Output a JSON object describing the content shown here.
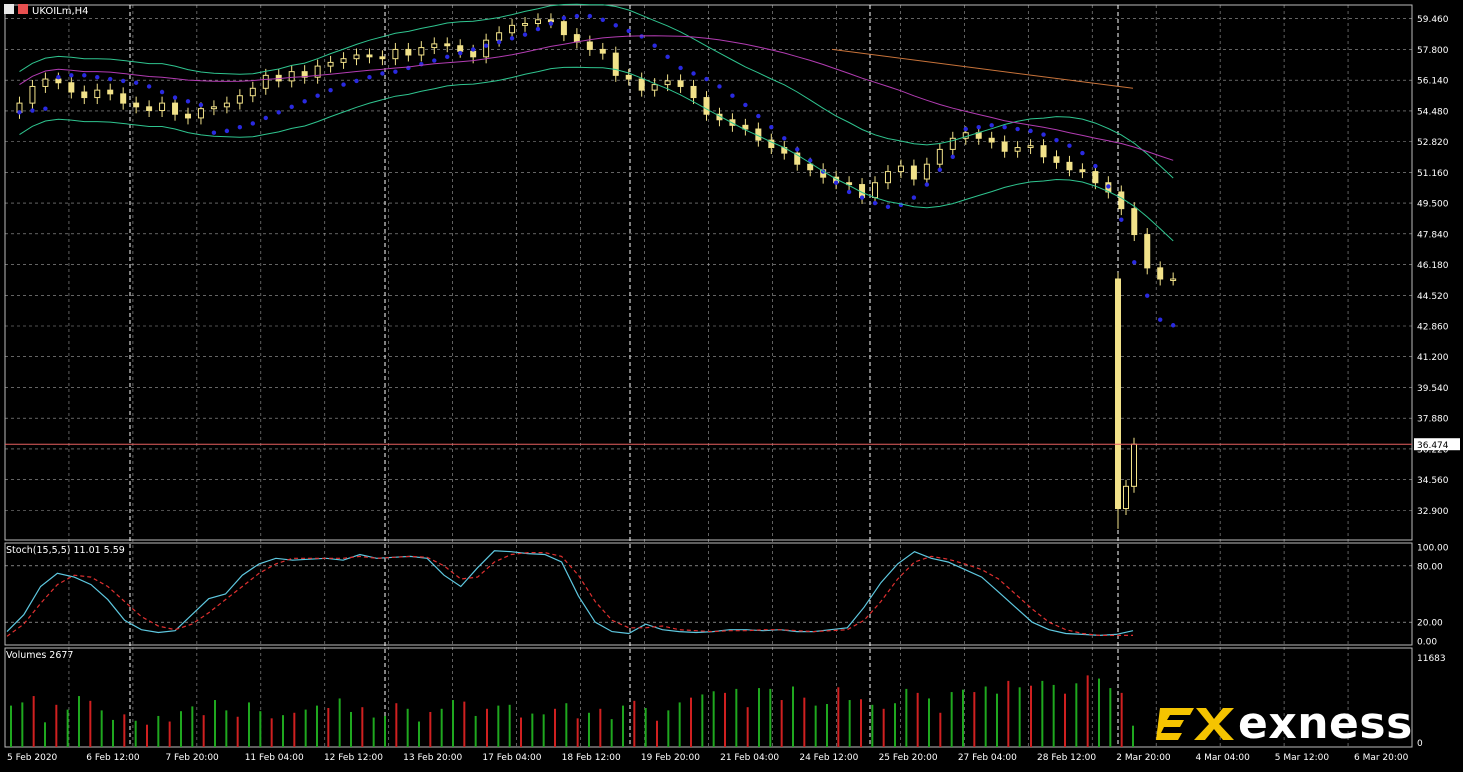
{
  "window": {
    "symbol_label": "UKOILm,H4"
  },
  "colors": {
    "bull_candle": "#f2e28a",
    "bear_candle": "#f2e28a",
    "sar": "#2a2ae0",
    "bollinger": "#2fc48f",
    "ma_magenta": "#b23cb2",
    "ma_orange": "#c8733a",
    "price_line": "#e86060",
    "stoch_main": "#5ec8e0",
    "stoch_signal": "#e03030",
    "vol_up": "#1fa81f",
    "vol_down": "#d02020",
    "grid": "#c8c8c8",
    "axis_text": "#ffffff",
    "logo_accent": "#f5c400"
  },
  "chart_data": [
    {
      "type": "candlestick",
      "panel": "main",
      "title": "UKOILm,H4",
      "price_axis_ticks": [
        "59.460",
        "57.800",
        "56.140",
        "54.480",
        "52.820",
        "51.160",
        "49.500",
        "47.840",
        "46.180",
        "44.520",
        "42.860",
        "41.200",
        "39.540",
        "37.880",
        "36.220",
        "34.560",
        "32.900"
      ],
      "current_price_label": "36.474",
      "current_price": 36.474,
      "ylim": [
        31.3,
        60.2
      ],
      "time_axis_ticks": [
        "5 Feb 2020",
        "6 Feb 12:00",
        "7 Feb 20:00",
        "11 Feb 04:00",
        "12 Feb 12:00",
        "13 Feb 20:00",
        "17 Feb 04:00",
        "18 Feb 12:00",
        "19 Feb 20:00",
        "21 Feb 04:00",
        "24 Feb 12:00",
        "25 Feb 20:00",
        "27 Feb 04:00",
        "28 Feb 12:00",
        "2 Mar 20:00",
        "4 Mar 04:00",
        "5 Mar 12:00",
        "6 Mar 20:00"
      ],
      "candle_close_path": [
        54.9,
        55.8,
        56.2,
        56.0,
        55.5,
        55.2,
        55.6,
        55.4,
        54.9,
        54.7,
        54.5,
        54.9,
        54.3,
        54.1,
        54.6,
        54.7,
        54.9,
        55.3,
        55.7,
        56.4,
        56.1,
        56.6,
        56.3,
        56.9,
        57.1,
        57.3,
        57.5,
        57.4,
        57.3,
        57.8,
        57.5,
        57.9,
        58.1,
        58.0,
        57.7,
        57.4,
        58.3,
        58.7,
        59.1,
        59.2,
        59.4,
        59.3,
        58.6,
        58.2,
        57.8,
        57.6,
        56.4,
        56.2,
        55.6,
        55.9,
        56.1,
        55.8,
        55.2,
        54.3,
        54.0,
        53.7,
        53.5,
        52.9,
        52.5,
        52.2,
        51.6,
        51.3,
        50.9,
        50.6,
        50.5,
        49.8,
        50.6,
        51.2,
        51.5,
        50.8,
        51.6,
        52.4,
        53.0,
        53.3,
        53.0,
        52.8,
        52.3,
        52.5,
        52.6,
        52.0,
        51.7,
        51.3,
        51.2,
        50.6,
        50.1,
        49.2,
        47.8,
        46.0,
        45.4,
        45.4,
        33.0,
        34.2,
        36.474
      ],
      "sar_values": [
        54.4,
        54.5,
        54.6,
        56.3,
        56.4,
        56.4,
        56.3,
        56.2,
        56.1,
        56.0,
        55.8,
        55.5,
        55.2,
        55.0,
        54.8,
        53.3,
        53.4,
        53.6,
        53.8,
        54.1,
        54.4,
        54.7,
        55.0,
        55.3,
        55.6,
        55.9,
        56.1,
        56.3,
        56.5,
        56.6,
        56.8,
        57.0,
        57.2,
        57.4,
        57.6,
        57.8,
        58.0,
        58.2,
        58.4,
        58.6,
        58.9,
        59.2,
        59.5,
        59.6,
        59.6,
        59.4,
        59.1,
        58.8,
        58.5,
        58.0,
        57.4,
        56.8,
        56.5,
        56.2,
        55.8,
        55.3,
        54.8,
        54.2,
        53.6,
        53.0,
        52.4,
        51.8,
        51.2,
        50.6,
        50.1,
        49.8,
        49.5,
        49.3,
        49.4,
        49.8,
        50.5,
        51.3,
        52.0,
        53.5,
        53.6,
        53.7,
        53.6,
        53.5,
        53.4,
        53.2,
        52.9,
        52.6,
        52.2,
        51.5,
        50.4,
        48.6,
        46.3,
        44.5,
        43.2,
        42.9
      ]
    },
    {
      "type": "line",
      "panel": "stochastic",
      "title": "Stoch(15,5,5) 11.01 5.59",
      "yticks": [
        "100.00",
        "80.00",
        "20.00",
        "0.00"
      ],
      "ylim": [
        0,
        100
      ],
      "series": [
        {
          "values": [
            10,
            28,
            58,
            72,
            68,
            60,
            44,
            22,
            12,
            9,
            11,
            28,
            45,
            50,
            70,
            82,
            88,
            86,
            87,
            88,
            86,
            92,
            88,
            89,
            90,
            88,
            70,
            58,
            78,
            96,
            95,
            93,
            92,
            84,
            48,
            20,
            10,
            8,
            18,
            12,
            10,
            9,
            10,
            12,
            12,
            11,
            12,
            10,
            10,
            12,
            14,
            36,
            62,
            82,
            95,
            88,
            84,
            76,
            68,
            52,
            36,
            20,
            12,
            8,
            7,
            6,
            7,
            11
          ]
        },
        {
          "values": [
            5,
            18,
            40,
            60,
            70,
            68,
            58,
            42,
            26,
            16,
            12,
            18,
            30,
            44,
            58,
            72,
            82,
            88,
            88,
            88,
            88,
            90,
            88,
            89,
            90,
            89,
            80,
            66,
            68,
            84,
            92,
            94,
            94,
            90,
            70,
            42,
            22,
            14,
            14,
            16,
            12,
            11,
            10,
            11,
            11,
            12,
            12,
            11,
            10,
            11,
            12,
            22,
            42,
            66,
            84,
            90,
            87,
            82,
            76,
            66,
            50,
            34,
            20,
            12,
            8,
            6,
            6,
            6
          ]
        }
      ]
    },
    {
      "type": "bar",
      "panel": "volumes",
      "title": "Volumes 2677",
      "yticks": [
        "11683",
        "0"
      ],
      "ylim": [
        0,
        11683
      ],
      "values": [
        5200,
        5600,
        6400,
        3100,
        5300,
        4700,
        6400,
        5800,
        4600,
        3400,
        4100,
        3300,
        2800,
        3900,
        3200,
        4500,
        5100,
        4000,
        5900,
        4600,
        3800,
        5600,
        4500,
        3600,
        4000,
        4300,
        4700,
        5200,
        4900,
        6100,
        4400,
        5000,
        3700,
        3900,
        5500,
        4800,
        3200,
        4400,
        4800,
        5900,
        5700,
        3900,
        4800,
        5200,
        5300,
        3700,
        4200,
        4100,
        4800,
        5500,
        3600,
        4300,
        4800,
        3500,
        5200,
        5800,
        4900,
        3300,
        4600,
        5600,
        6200,
        6600,
        7000,
        6800,
        7300,
        5000,
        7400,
        7300,
        5900,
        7600,
        6200,
        5200,
        5400,
        7500,
        5900,
        6000,
        5300,
        4800,
        5500,
        7300,
        6800,
        6100,
        4300,
        6900,
        7200,
        6900,
        7600,
        6700,
        8300,
        7500,
        7700,
        8300,
        7800,
        6700,
        8000,
        9000,
        8600,
        7400,
        6800,
        2677
      ],
      "up_down": [
        1,
        1,
        0,
        1,
        0,
        1,
        1,
        0,
        1,
        1,
        0,
        1,
        0,
        1,
        0,
        1,
        1,
        0,
        1,
        1,
        0,
        1,
        1,
        0,
        1,
        0,
        1,
        1,
        0,
        1,
        1,
        0,
        1,
        1,
        0,
        1,
        1,
        0,
        1,
        1,
        0,
        1,
        0,
        1,
        1,
        0,
        1,
        1,
        0,
        1,
        0,
        1,
        0,
        1,
        1,
        0,
        1,
        0,
        1,
        1,
        0,
        1,
        1,
        0,
        1,
        0,
        1,
        1,
        0,
        1,
        0,
        1,
        1,
        0,
        1,
        0,
        1,
        0,
        1,
        1,
        0,
        1,
        0,
        1,
        1,
        0,
        1,
        1,
        0,
        1,
        0,
        1,
        1,
        0,
        1,
        0,
        1,
        1,
        0,
        1
      ]
    }
  ],
  "logo": {
    "word": "exness"
  }
}
